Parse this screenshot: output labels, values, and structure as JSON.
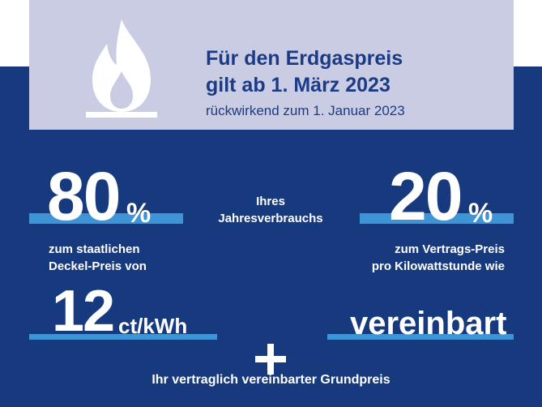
{
  "header": {
    "title_line1": "Für den Erdgaspreis",
    "title_line2": "gilt ab 1. März 2023",
    "subtitle": "rückwirkend zum 1. Januar 2023",
    "icon": "flame-icon"
  },
  "left": {
    "percent_number": "80",
    "percent_sign": "%",
    "desc_line1": "zum staatlichen",
    "desc_line2": "Deckel-Preis von",
    "price_number": "12",
    "price_unit": "ct/kWh"
  },
  "center": {
    "line1": "Ihres",
    "line2": "Jahresverbrauchs"
  },
  "right": {
    "percent_number": "20",
    "percent_sign": "%",
    "desc_line1": "zum Vertrags-Preis",
    "desc_line2": "pro Kilowattstunde wie",
    "value": "vereinbart"
  },
  "footer": {
    "plus_icon": "plus-icon",
    "text": "Ihr vertraglich vereinbarter Grundpreis"
  },
  "colors": {
    "navy": "#173a7e",
    "header_bg": "#c9cce3",
    "accent_blue": "#3f94d6",
    "title_text": "#1b3c85"
  }
}
